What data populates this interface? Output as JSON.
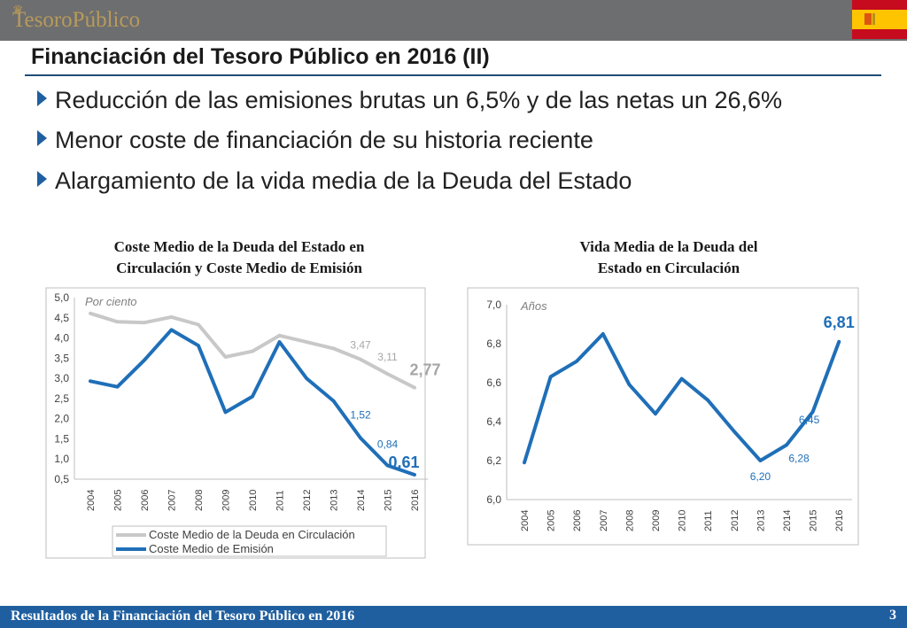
{
  "header": {
    "logo_text": "TesoroPúblico",
    "crown_glyph": "♛",
    "flag_icon": "spain-flag-icon"
  },
  "slide": {
    "title": "Financiación del Tesoro Público en 2016 (II)",
    "bullets": [
      "Reducción de las emisiones brutas un 6,5% y de las netas un 26,6%",
      "Menor coste de financiación de su historia reciente",
      "Alargamiento de la vida media de la Deuda del Estado"
    ]
  },
  "footer": {
    "text": "Resultados de la Financiación del Tesoro Público en 2016",
    "page": "3"
  },
  "colors": {
    "brand_blue": "#1f5f9f",
    "series_blue": "#1f6fb8",
    "series_gray": "#c8c8c8",
    "gold": "#b89a5a"
  },
  "chart_data": [
    {
      "type": "line",
      "title_line1": "Coste Medio de la Deuda del Estado en",
      "title_line2": "Circulación y Coste Medio de Emisión",
      "unit_label": "Por ciento",
      "categories": [
        "2004",
        "2005",
        "2006",
        "2007",
        "2008",
        "2009",
        "2010",
        "2011",
        "2012",
        "2013",
        "2014",
        "2015",
        "2016"
      ],
      "ylim": [
        0.5,
        5.0
      ],
      "yticks": [
        "0,5",
        "1,0",
        "1,5",
        "2,0",
        "2,5",
        "3,0",
        "3,5",
        "4,0",
        "4,5",
        "5,0"
      ],
      "series": [
        {
          "name": "Coste Medio de la Deuda en Circulación",
          "values": [
            4.61,
            4.4,
            4.38,
            4.52,
            4.33,
            3.53,
            3.67,
            4.06,
            3.9,
            3.74,
            3.47,
            3.11,
            2.77
          ]
        },
        {
          "name": "Coste Medio de Emisión",
          "values": [
            2.93,
            2.79,
            3.45,
            4.2,
            3.81,
            2.16,
            2.55,
            3.9,
            3.0,
            2.44,
            1.52,
            0.84,
            0.61
          ]
        }
      ],
      "data_labels": [
        {
          "series": 0,
          "index": 10,
          "text": "3,47"
        },
        {
          "series": 0,
          "index": 11,
          "text": "3,11"
        },
        {
          "series": 0,
          "index": 12,
          "text": "2,77",
          "emphasis": true
        },
        {
          "series": 1,
          "index": 10,
          "text": "1,52"
        },
        {
          "series": 1,
          "index": 11,
          "text": "0,84"
        },
        {
          "series": 1,
          "index": 12,
          "text": "0,61",
          "emphasis": true
        }
      ],
      "legend_placement": "bottom"
    },
    {
      "type": "line",
      "title_line1": "Vida Media de la Deuda del",
      "title_line2": "Estado en Circulación",
      "unit_label": "Años",
      "categories": [
        "2004",
        "2005",
        "2006",
        "2007",
        "2008",
        "2009",
        "2010",
        "2011",
        "2012",
        "2013",
        "2014",
        "2015",
        "2016"
      ],
      "ylim": [
        6.0,
        7.0
      ],
      "yticks": [
        "6,0",
        "6,2",
        "6,4",
        "6,6",
        "6,8",
        "7,0"
      ],
      "series": [
        {
          "name": "Vida Media",
          "values": [
            6.19,
            6.63,
            6.71,
            6.85,
            6.59,
            6.44,
            6.62,
            6.51,
            6.35,
            6.2,
            6.28,
            6.45,
            6.81
          ]
        }
      ],
      "data_labels": [
        {
          "series": 0,
          "index": 9,
          "text": "6,20"
        },
        {
          "series": 0,
          "index": 10,
          "text": "6,28"
        },
        {
          "series": 0,
          "index": 11,
          "text": "6,45"
        },
        {
          "series": 0,
          "index": 12,
          "text": "6,81",
          "emphasis": true
        }
      ]
    }
  ]
}
